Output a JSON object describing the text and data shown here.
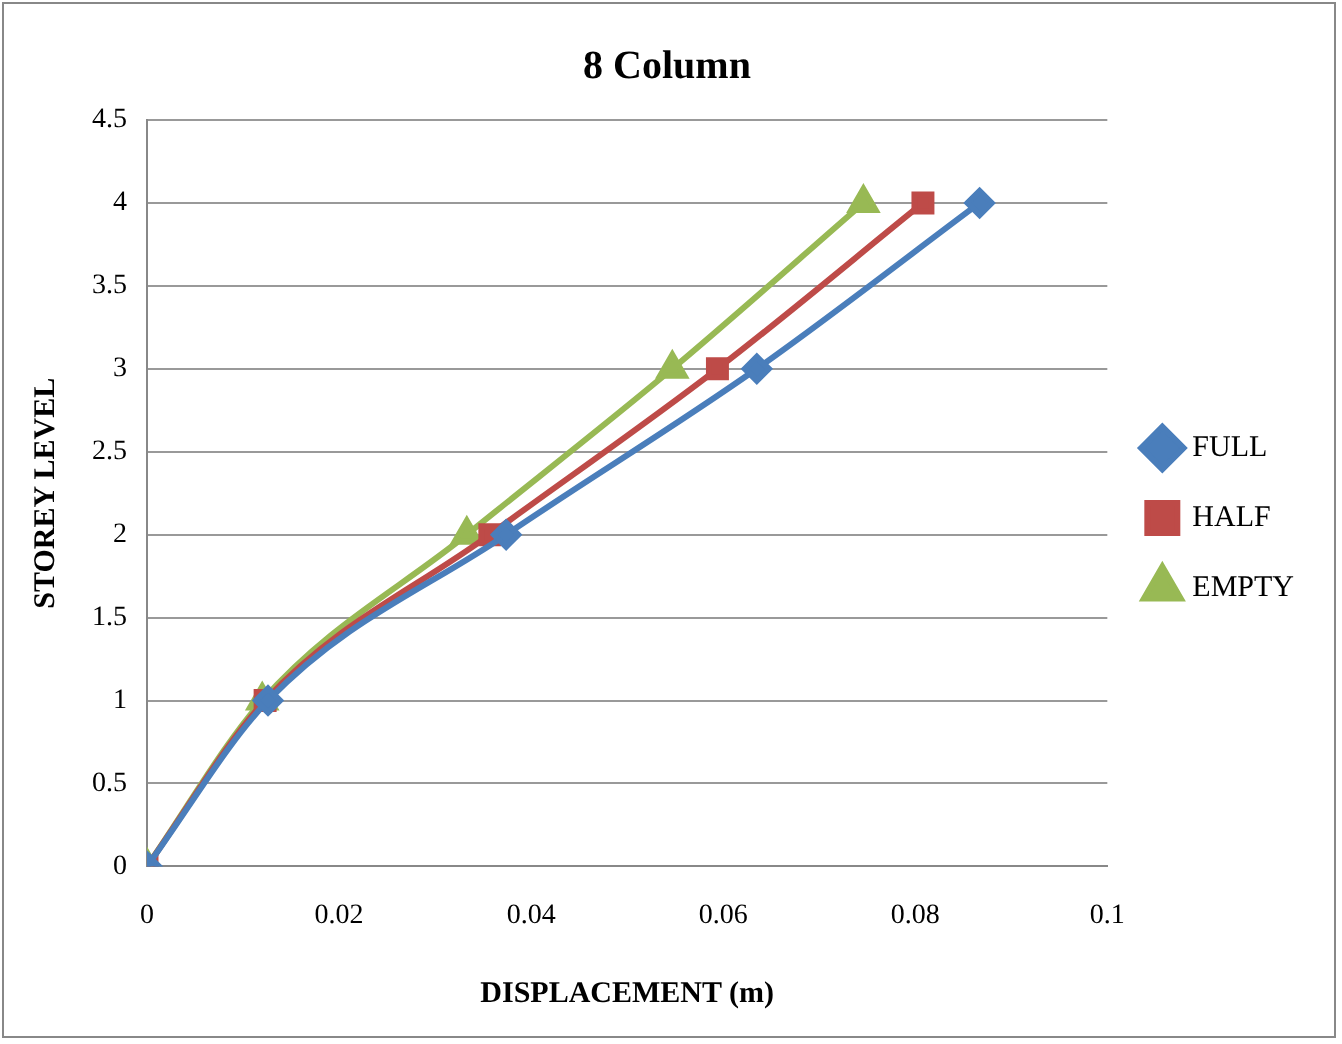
{
  "chart_data": {
    "type": "line",
    "title": "8 Column",
    "xlabel": "DISPLACEMENT (m)",
    "ylabel": "STOREY LEVEL",
    "xlim": [
      0,
      0.1
    ],
    "xticks": [
      0,
      0.02,
      0.04,
      0.06,
      0.08,
      0.1
    ],
    "ylim": [
      0,
      4.5
    ],
    "yticks": [
      0,
      0.5,
      1,
      1.5,
      2,
      2.5,
      3,
      3.5,
      4,
      4.5
    ],
    "grid": "y",
    "legend": "right",
    "series": [
      {
        "name": "FULL",
        "color": "#4a7ebb",
        "marker": "diamond",
        "x": [
          0,
          0.0126,
          0.0374,
          0.0635,
          0.0867
        ],
        "values": [
          0,
          1,
          2,
          3,
          4
        ]
      },
      {
        "name": "HALF",
        "color": "#be4b48",
        "marker": "square",
        "x": [
          0,
          0.0123,
          0.0357,
          0.0594,
          0.0808
        ],
        "values": [
          0,
          1,
          2,
          3,
          4
        ]
      },
      {
        "name": "EMPTY",
        "color": "#98b954",
        "marker": "triangle",
        "x": [
          0,
          0.012,
          0.0333,
          0.0547,
          0.0746
        ],
        "values": [
          0,
          1,
          2,
          3,
          4
        ]
      }
    ]
  }
}
